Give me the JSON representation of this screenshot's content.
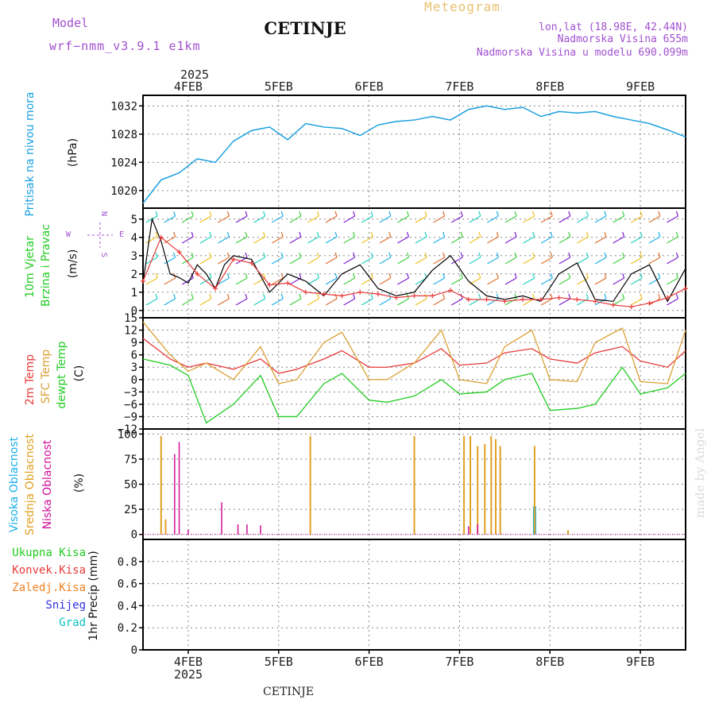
{
  "header": {
    "model_label": "Model",
    "model_value": "wrf−nmm_v3.9.1  e1km",
    "station_title": "CETINJE",
    "meteogram_label": "Meteogram",
    "lonlat": "lon,lat (18.98E, 42.44N)",
    "elevation": "Nadmorska Visina 655m",
    "model_elevation": "Nadmorska Visina u modelu 690.099m",
    "watermark": "made by Angel",
    "footer_station": "CETINJE"
  },
  "colors": {
    "pressure": "#1a9fe0",
    "temp2m": "#e83a3a",
    "sfc": "#dca035",
    "dew": "#22cc22",
    "high_cloud": "#1ab0e8",
    "mid_cloud": "#e0a020",
    "low_cloud": "#d0109a",
    "grid": "#888888",
    "purple_text": "#a050d0"
  },
  "chart_data": [
    {
      "id": "pressure",
      "type": "line",
      "ylabel_title": "Pritisak na nivou mora",
      "ylabel_unit": "(hPa)",
      "ylim": [
        1017.5,
        1033.5
      ],
      "yticks": [
        "1020",
        "1024",
        "1028",
        "1032"
      ],
      "ytick_values": [
        1020,
        1024,
        1028,
        1032
      ],
      "x": [
        0,
        0.2,
        0.4,
        0.6,
        0.8,
        1.0,
        1.2,
        1.4,
        1.6,
        1.8,
        2.0,
        2.2,
        2.4,
        2.6,
        2.8,
        3.0,
        3.2,
        3.4,
        3.6,
        3.8,
        4.0,
        4.2,
        4.4,
        4.6,
        4.8,
        5.0,
        5.2,
        5.4,
        5.6,
        5.8,
        6.0
      ],
      "y": [
        1018.2,
        1021.5,
        1022.5,
        1024.5,
        1024.0,
        1027.0,
        1028.5,
        1029.0,
        1027.2,
        1029.5,
        1029.0,
        1028.8,
        1027.8,
        1029.3,
        1029.8,
        1030.0,
        1030.5,
        1030.0,
        1031.5,
        1032.0,
        1031.5,
        1031.8,
        1030.5,
        1031.2,
        1031.0,
        1031.2,
        1030.5,
        1030.0,
        1029.5,
        1028.6,
        1027.6
      ],
      "grid": true
    },
    {
      "id": "wind",
      "type": "line",
      "ylabel_title": "10m Vjetar",
      "ylabel_subtitle": "Brzina i Pravac",
      "ylabel_unit": "(m/s)",
      "compass_n": "N",
      "compass_w": "W",
      "compass_e": "E",
      "compass_s": "S",
      "ylim": [
        -0.4,
        5.6
      ],
      "yticks": [
        "0",
        "1",
        "2",
        "3",
        "4",
        "5"
      ],
      "ytick_values": [
        0,
        1,
        2,
        3,
        4,
        5
      ],
      "series": [
        {
          "x": [
            0,
            0.1,
            0.2,
            0.3,
            0.4,
            0.5,
            0.6,
            0.7,
            0.8,
            0.9,
            1.0,
            1.2,
            1.4,
            1.6,
            1.8,
            2.0,
            2.2,
            2.4,
            2.6,
            2.8,
            3.0,
            3.2,
            3.4,
            3.6,
            3.8,
            4.0,
            4.2,
            4.4,
            4.6,
            4.8,
            5.0,
            5.2,
            5.4,
            5.6,
            5.8,
            6.0
          ],
          "y": [
            1.5,
            5.0,
            3.8,
            2.0,
            1.8,
            1.5,
            2.5,
            2.0,
            1.2,
            2.5,
            3.0,
            2.8,
            1.0,
            2.0,
            1.6,
            0.8,
            2.0,
            2.5,
            1.2,
            0.8,
            1.0,
            2.2,
            3.0,
            1.6,
            0.8,
            0.6,
            0.8,
            0.5,
            2.0,
            2.6,
            0.6,
            0.5,
            2.0,
            2.5,
            0.5,
            2.3
          ]
        },
        {
          "x": [
            0,
            0.2,
            0.4,
            0.6,
            0.8,
            1.0,
            1.2,
            1.4,
            1.6,
            1.8,
            2.0,
            2.2,
            2.4,
            2.6,
            2.8,
            3.0,
            3.2,
            3.4,
            3.6,
            3.8,
            4.0,
            4.2,
            4.4,
            4.6,
            4.8,
            5.0,
            5.2,
            5.4,
            5.6,
            5.8,
            6.0
          ],
          "y": [
            1.6,
            4.0,
            3.2,
            2.0,
            1.2,
            2.8,
            2.6,
            1.4,
            1.5,
            1.0,
            0.9,
            0.8,
            1.0,
            0.9,
            0.7,
            0.8,
            0.8,
            1.1,
            0.6,
            0.6,
            0.5,
            0.6,
            0.6,
            0.7,
            0.6,
            0.5,
            0.3,
            0.2,
            0.4,
            0.7,
            1.2
          ]
        }
      ],
      "grid": true
    },
    {
      "id": "temperature",
      "type": "line",
      "ylabel_title": "2m Temp",
      "ylabel_sfc": "SFC Temp",
      "ylabel_dew": "dewpt Temp",
      "ylabel_unit": "(C)",
      "ylim": [
        -12,
        15
      ],
      "yticks": [
        "−12",
        "−9",
        "−6",
        "−3",
        "0",
        "3",
        "6",
        "9",
        "12",
        "15"
      ],
      "ytick_values": [
        -12,
        -9,
        -6,
        -3,
        0,
        3,
        6,
        9,
        12,
        15
      ],
      "series": [
        {
          "name": "2m Temp",
          "x": [
            0,
            0.3,
            0.5,
            0.7,
            1.0,
            1.3,
            1.5,
            1.7,
            2.0,
            2.2,
            2.5,
            2.7,
            3.0,
            3.3,
            3.5,
            3.8,
            4.0,
            4.3,
            4.5,
            4.8,
            5.0,
            5.3,
            5.5,
            5.8,
            6.0
          ],
          "y": [
            10.0,
            5.0,
            3.0,
            4.0,
            2.5,
            5.0,
            1.5,
            2.5,
            5.0,
            7.0,
            3.0,
            3.0,
            4.0,
            7.5,
            3.5,
            4.0,
            6.5,
            7.5,
            5.0,
            4.0,
            6.5,
            8.0,
            4.5,
            3.0,
            7.0
          ]
        },
        {
          "name": "SFC Temp",
          "x": [
            0,
            0.3,
            0.5,
            0.7,
            1.0,
            1.3,
            1.5,
            1.7,
            2.0,
            2.2,
            2.5,
            2.7,
            3.0,
            3.3,
            3.5,
            3.8,
            4.0,
            4.3,
            4.5,
            4.8,
            5.0,
            5.3,
            5.5,
            5.8,
            6.0
          ],
          "y": [
            14.0,
            6.0,
            2.0,
            4.0,
            0.0,
            8.0,
            -1.0,
            0.0,
            9.0,
            11.5,
            0.0,
            0.0,
            4.0,
            12.0,
            0.0,
            -1.0,
            8.0,
            12.0,
            0.0,
            -0.5,
            9.0,
            12.5,
            -0.5,
            -1.0,
            12.0
          ]
        },
        {
          "name": "dewpt Temp",
          "x": [
            0,
            0.3,
            0.5,
            0.7,
            1.0,
            1.3,
            1.5,
            1.7,
            2.0,
            2.2,
            2.5,
            2.7,
            3.0,
            3.3,
            3.5,
            3.8,
            4.0,
            4.3,
            4.5,
            4.8,
            5.0,
            5.3,
            5.5,
            5.8,
            6.0
          ],
          "y": [
            5.0,
            3.5,
            1.0,
            -10.5,
            -6.0,
            1.0,
            -9.0,
            -9.0,
            -1.0,
            1.5,
            -5.0,
            -5.5,
            -4.0,
            0.0,
            -3.5,
            -3.0,
            0.0,
            1.5,
            -7.5,
            -7.0,
            -6.0,
            3.0,
            -3.5,
            -2.0,
            1.5
          ]
        }
      ],
      "grid": true
    },
    {
      "id": "clouds",
      "type": "bar",
      "ylabel_high": "Visoka Oblacnost",
      "ylabel_mid": "Srednja Oblacnost",
      "ylabel_low": "Niska Oblacnost",
      "ylabel_unit": "(%)",
      "ylim": [
        -5,
        105
      ],
      "yticks": [
        "0",
        "25",
        "50",
        "75",
        "100"
      ],
      "ytick_values": [
        0,
        25,
        50,
        75,
        100
      ],
      "series": [
        {
          "name": "Visoka Oblacnost",
          "x": [
            4.33
          ],
          "values": [
            28
          ]
        },
        {
          "name": "Srednja Oblacnost",
          "x": [
            0.2,
            0.25,
            1.85,
            3.0,
            3.55,
            3.62,
            3.7,
            3.78,
            3.85,
            3.9,
            3.95,
            4.33,
            4.7
          ],
          "values": [
            98,
            15,
            98,
            98,
            98,
            98,
            88,
            90,
            98,
            95,
            88,
            88,
            4
          ]
        },
        {
          "name": "Niska Oblacnost",
          "x": [
            0.35,
            0.4,
            0.5,
            0.87,
            1.05,
            1.15,
            1.3,
            3.6,
            3.7
          ],
          "values": [
            80,
            92,
            5,
            32,
            10,
            10,
            9,
            8,
            10
          ]
        }
      ],
      "grid": true
    },
    {
      "id": "precip",
      "type": "bar",
      "ylabel_unit": "1hr Precip (mm)",
      "legend": [
        "Ukupna Kisa",
        "Konvek.Kisa",
        "Zaledj.Kisa",
        "Snijeg",
        "Grad"
      ],
      "legend_colors": [
        "#22cc22",
        "#e83a3a",
        "#f08020",
        "#3030e0",
        "#10c0c0"
      ],
      "ylim": [
        0,
        1.0
      ],
      "yticks": [
        "0",
        "0.2",
        "0.4",
        "0.6",
        "0.8"
      ],
      "ytick_values": [
        0,
        0.2,
        0.4,
        0.6,
        0.8
      ],
      "values": [],
      "grid": true
    }
  ],
  "x_axis": {
    "year_label": "2025",
    "ticks": [
      "4FEB",
      "5FEB",
      "6FEB",
      "7FEB",
      "8FEB",
      "9FEB"
    ],
    "tick_positions": [
      0.5,
      1.5,
      2.5,
      3.5,
      4.5,
      5.5
    ],
    "xlim": [
      0,
      6
    ]
  }
}
